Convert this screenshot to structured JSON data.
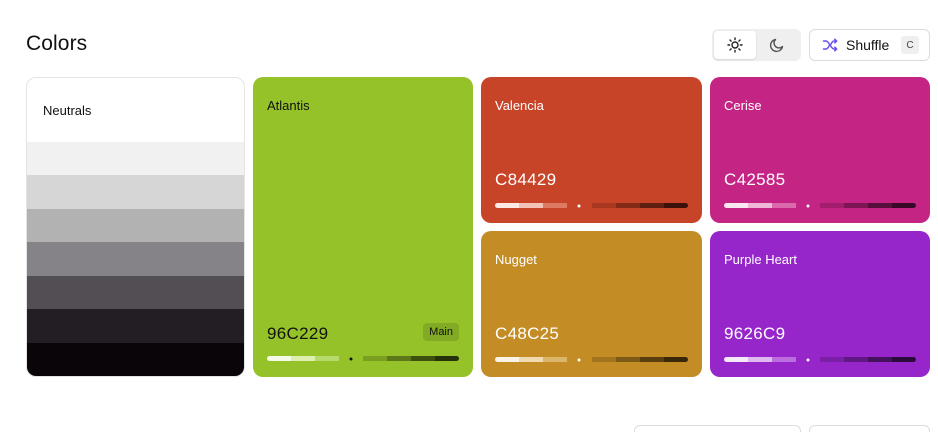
{
  "header": {
    "title": "Colors",
    "theme_toggle": {
      "options": [
        {
          "name": "light",
          "icon": "sun-icon",
          "active": true
        },
        {
          "name": "dark",
          "icon": "moon-icon",
          "active": false
        }
      ]
    },
    "shuffle": {
      "label": "Shuffle",
      "shortcut": "C",
      "icon": "shuffle-icon",
      "icon_color": "#6b4df0"
    }
  },
  "neutrals": {
    "label": "Neutrals",
    "steps": [
      "#ffffff",
      "#f1f1f1",
      "#d6d6d6",
      "#b2b2b2",
      "#858387",
      "#524e54",
      "#231e24",
      "#0a0508"
    ]
  },
  "cards": [
    {
      "id": "atlantis",
      "name": "Atlantis",
      "hex": "96C229",
      "color": "#96c229",
      "text_color": "#111111",
      "badge": "Main",
      "shades": [
        "#f5fae8",
        "#dcefae",
        "#b5d96b",
        "#96c229",
        "#7a9e20",
        "#5c7818",
        "#3d5010",
        "#263209"
      ],
      "current": 3,
      "dot": "#111111"
    },
    {
      "id": "valencia",
      "name": "Valencia",
      "hex": "C84429",
      "color": "#c84429",
      "text_color": "#ffffff",
      "shades": [
        "#fbeae6",
        "#f3c3b7",
        "#dd7a64",
        "#c84429",
        "#a7371f",
        "#842b18",
        "#5e1e10",
        "#3b1209"
      ],
      "current": 3,
      "dot": "#ffffff"
    },
    {
      "id": "cerise",
      "name": "Cerise",
      "hex": "C42585",
      "color": "#c42585",
      "text_color": "#ffffff",
      "shades": [
        "#fbe7f2",
        "#f0b8d8",
        "#db6aac",
        "#c42585",
        "#a21d6e",
        "#7e1656",
        "#590f3c",
        "#380926"
      ],
      "current": 3,
      "dot": "#ffffff"
    },
    {
      "id": "nugget",
      "name": "Nugget",
      "hex": "C48C25",
      "color": "#c48c25",
      "text_color": "#ffffff",
      "shades": [
        "#fbf4e6",
        "#f0dbb0",
        "#dbb66a",
        "#c48c25",
        "#a2741e",
        "#7e5a17",
        "#593f10",
        "#382709"
      ],
      "current": 3,
      "dot": "#ffffff"
    },
    {
      "id": "purple-heart",
      "name": "Purple Heart",
      "hex": "9626C9",
      "color": "#9626c9",
      "text_color": "#ffffff",
      "shades": [
        "#f4e8fa",
        "#ddb9f0",
        "#bb6ddd",
        "#9626c9",
        "#7c1fa7",
        "#611884",
        "#44115d",
        "#2b0b3b"
      ],
      "current": 3,
      "dot": "#ffffff"
    }
  ]
}
